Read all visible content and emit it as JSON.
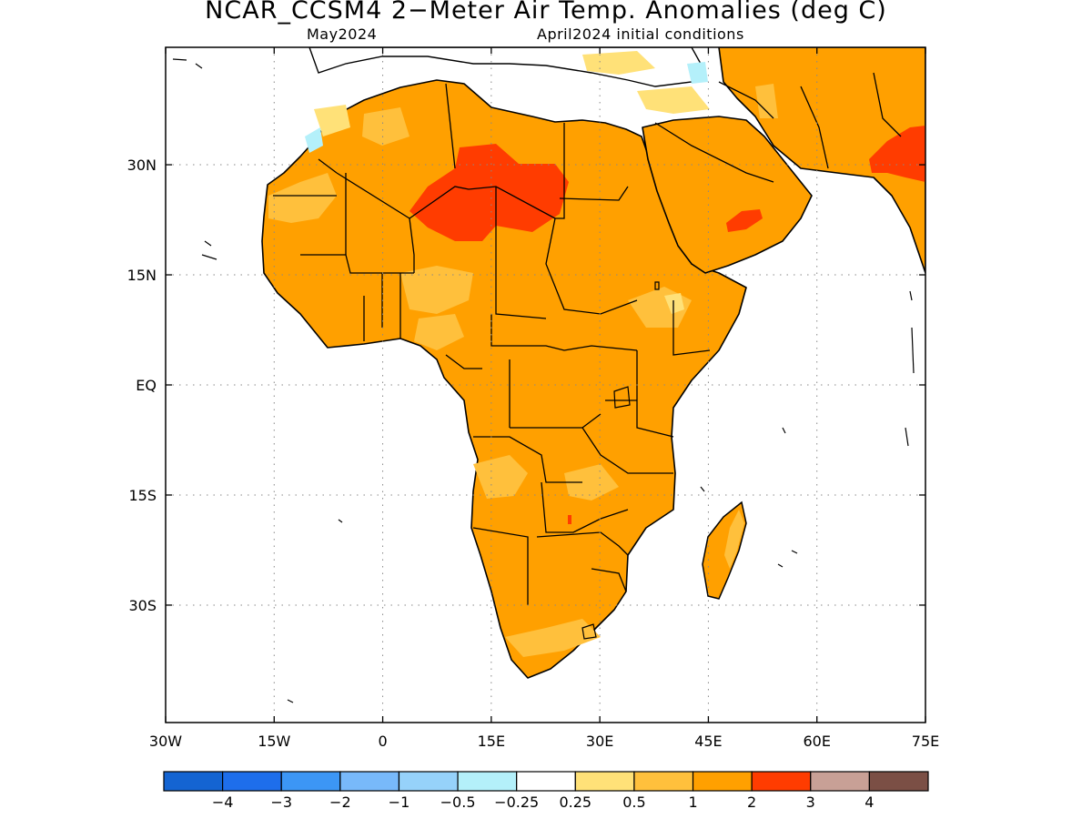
{
  "title": "NCAR_CCSM4 2−Meter Air Temp. Anomalies (deg C)",
  "subtitle_left": "May2024",
  "subtitle_right": "April2024 initial conditions",
  "map": {
    "lon_range": [
      -30,
      75
    ],
    "lat_range": [
      -46,
      46
    ],
    "lon_ticks": [
      {
        "value": -30,
        "label": "30W"
      },
      {
        "value": -15,
        "label": "15W"
      },
      {
        "value": 0,
        "label": "0"
      },
      {
        "value": 15,
        "label": "15E"
      },
      {
        "value": 30,
        "label": "30E"
      },
      {
        "value": 45,
        "label": "45E"
      },
      {
        "value": 60,
        "label": "60E"
      },
      {
        "value": 75,
        "label": "75E"
      }
    ],
    "lat_ticks": [
      {
        "value": 30,
        "label": "30N"
      },
      {
        "value": 15,
        "label": "15N"
      },
      {
        "value": 0,
        "label": "EQ"
      },
      {
        "value": -15,
        "label": "15S"
      },
      {
        "value": -30,
        "label": "30S"
      }
    ],
    "grid": "dotted"
  },
  "colorbar": {
    "colors": [
      "#1464d2",
      "#1e6eeb",
      "#3c96f5",
      "#78b9fa",
      "#96d2fa",
      "#b4f0fa",
      "#ffffff",
      "#ffe178",
      "#ffc03c",
      "#ffa000",
      "#ff3c00",
      "#c8a096",
      "#7b4f45"
    ],
    "labels": [
      "−4",
      "−3",
      "−2",
      "−1",
      "−0.5",
      "−0.25",
      "0.25",
      "0.5",
      "1",
      "2",
      "3",
      "4"
    ]
  },
  "colors": {
    "anomaly_0_5_to_1": "#ffc03c",
    "anomaly_1_to_2": "#ffa000",
    "anomaly_2_to_3": "#ff3c00",
    "anomaly_0_25_to_0_5": "#ffe178",
    "anomaly_neg_0_25": "#b4f0fa",
    "border": "#000000"
  }
}
